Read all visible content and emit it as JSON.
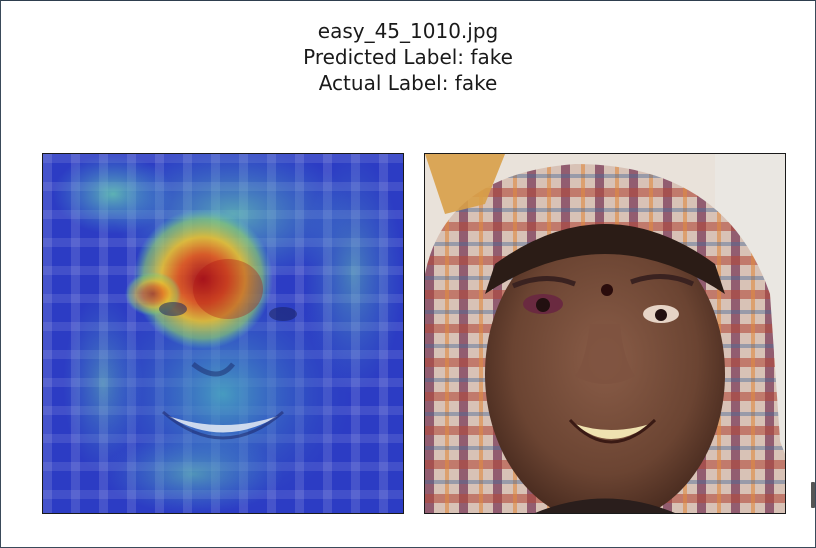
{
  "figure": {
    "title_lines": [
      "easy_45_1010.jpg",
      "Predicted Label: fake",
      "Actual Label: fake"
    ]
  },
  "panels": [
    {
      "kind": "heatmap-overlay",
      "colormap": "jet"
    },
    {
      "kind": "original-photo"
    }
  ],
  "colors": {
    "heatmap_low": "#2a3cc8",
    "heatmap_mid": "#5fc8b4",
    "heatmap_high": "#d42818",
    "frame": "#1a1a1a"
  }
}
